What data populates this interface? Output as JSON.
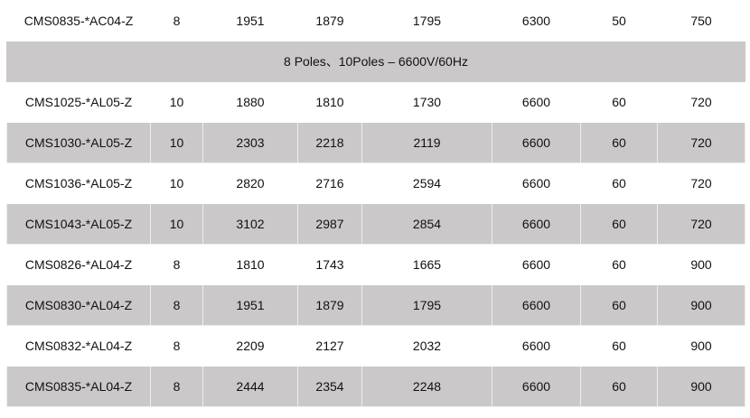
{
  "first_row": [
    "CMS0835-*AC04-Z",
    "8",
    "1951",
    "1879",
    "1795",
    "6300",
    "50",
    "750"
  ],
  "section_title": "8 Poles、10Poles – 6600V/60Hz",
  "rows": [
    [
      "CMS1025-*AL05-Z",
      "10",
      "1880",
      "1810",
      "1730",
      "6600",
      "60",
      "720"
    ],
    [
      "CMS1030-*AL05-Z",
      "10",
      "2303",
      "2218",
      "2119",
      "6600",
      "60",
      "720"
    ],
    [
      "CMS1036-*AL05-Z",
      "10",
      "2820",
      "2716",
      "2594",
      "6600",
      "60",
      "720"
    ],
    [
      "CMS1043-*AL05-Z",
      "10",
      "3102",
      "2987",
      "2854",
      "6600",
      "60",
      "720"
    ],
    [
      "CMS0826-*AL04-Z",
      "8",
      "1810",
      "1743",
      "1665",
      "6600",
      "60",
      "900"
    ],
    [
      "CMS0830-*AL04-Z",
      "8",
      "1951",
      "1879",
      "1795",
      "6600",
      "60",
      "900"
    ],
    [
      "CMS0832-*AL04-Z",
      "8",
      "2209",
      "2127",
      "2032",
      "6600",
      "60",
      "900"
    ],
    [
      "CMS0835-*AL04-Z",
      "8",
      "2444",
      "2354",
      "2248",
      "6600",
      "60",
      "900"
    ]
  ],
  "colors": {
    "row_gray": "#cac8c8"
  }
}
